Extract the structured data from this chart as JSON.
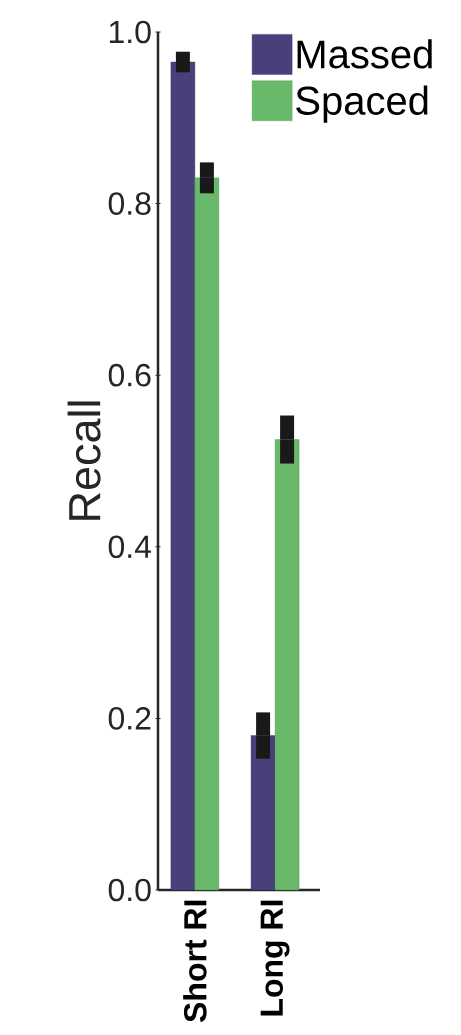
{
  "chart_data": {
    "type": "bar",
    "ylabel": "Recall",
    "categories": [
      "Short RI",
      "Long RI"
    ],
    "series": [
      {
        "name": "Massed",
        "color": "#48407a",
        "values": [
          0.965,
          0.18
        ],
        "errors": [
          0.012,
          0.027
        ]
      },
      {
        "name": "Spaced",
        "color": "#69b96b",
        "values": [
          0.83,
          0.525
        ],
        "errors": [
          0.018,
          0.028
        ]
      }
    ],
    "ylim": [
      0,
      1
    ],
    "yticks": [
      {
        "value": 0,
        "label": "0.0"
      },
      {
        "value": 0.2,
        "label": "0.2"
      },
      {
        "value": 0.4,
        "label": "0.4"
      },
      {
        "value": 0.6,
        "label": "0.6"
      },
      {
        "value": 0.8,
        "label": "0.8"
      },
      {
        "value": 1,
        "label": "1.0"
      }
    ],
    "legend": "top right",
    "grid": false
  }
}
